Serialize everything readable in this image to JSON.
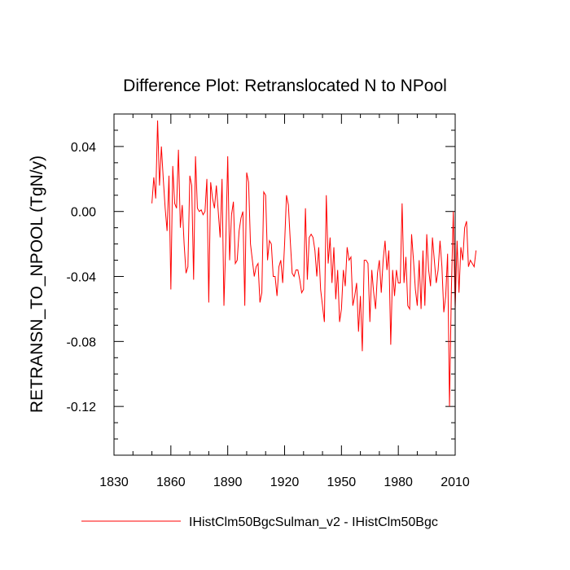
{
  "chart_data": {
    "type": "line",
    "title": "Difference Plot: Retranslocated N to NPool",
    "xlabel": "",
    "ylabel": "RETRANSN_TO_NPOOL  (TgN/y)",
    "xlim": [
      1830,
      2010
    ],
    "ylim": [
      -0.15,
      0.06
    ],
    "x_ticks": [
      1830,
      1860,
      1890,
      1920,
      1950,
      1980,
      2010
    ],
    "x_tick_labels": [
      "1830",
      "1860",
      "1890",
      "1920",
      "1950",
      "1980",
      "2010"
    ],
    "y_ticks": [
      0.04,
      0.0,
      -0.04,
      -0.08,
      -0.12
    ],
    "y_tick_labels": [
      "0.04",
      "0.00",
      "-0.04",
      "-0.08",
      "-0.12"
    ],
    "grid": false,
    "legend_position": "bottom-center",
    "series": [
      {
        "name": "IHistClm50BgcSulman_v2 - IHistClm50Bgc",
        "color": "#ff0000",
        "x_start": 1850,
        "x_step": 1,
        "values": [
          0.005,
          0.021,
          0.008,
          0.056,
          0.016,
          0.04,
          0.02,
          0.002,
          -0.012,
          0.022,
          -0.048,
          0.028,
          0.005,
          0.002,
          0.038,
          -0.01,
          0.004,
          -0.02,
          -0.038,
          -0.034,
          0.022,
          0.016,
          -0.042,
          0.034,
          0.002,
          0.0,
          0.001,
          -0.002,
          0.0,
          0.02,
          -0.056,
          0.018,
          0.008,
          0.002,
          0.016,
          0.0,
          -0.016,
          0.02,
          -0.058,
          -0.018,
          0.034,
          -0.03,
          -0.002,
          0.006,
          -0.032,
          -0.03,
          -0.012,
          -0.004,
          0.0,
          -0.058,
          0.024,
          0.018,
          -0.02,
          -0.03,
          -0.04,
          -0.034,
          -0.032,
          -0.056,
          -0.05,
          0.012,
          0.01,
          -0.03,
          -0.018,
          -0.02,
          -0.04,
          -0.04,
          -0.052,
          -0.034,
          -0.03,
          -0.044,
          -0.02,
          0.01,
          0.004,
          -0.018,
          -0.038,
          -0.04,
          -0.036,
          -0.036,
          -0.042,
          -0.05,
          -0.048,
          0.002,
          -0.042,
          -0.016,
          -0.014,
          -0.016,
          -0.024,
          -0.04,
          -0.022,
          -0.048,
          -0.058,
          -0.068,
          0.01,
          -0.032,
          -0.016,
          -0.044,
          -0.022,
          -0.054,
          -0.036,
          -0.068,
          -0.06,
          -0.036,
          -0.046,
          -0.022,
          -0.03,
          -0.028,
          -0.058,
          -0.052,
          -0.044,
          -0.074,
          -0.052,
          -0.086,
          -0.03,
          -0.03,
          -0.032,
          -0.068,
          -0.036,
          -0.05,
          -0.06,
          -0.038,
          -0.03,
          -0.05,
          -0.03,
          -0.018,
          -0.036,
          -0.024,
          -0.082,
          -0.036,
          -0.052,
          -0.036,
          -0.044,
          -0.044,
          0.005,
          -0.044,
          -0.028,
          -0.058,
          -0.06,
          -0.014,
          -0.03,
          -0.048,
          -0.058,
          -0.03,
          -0.06,
          -0.024,
          -0.058,
          -0.014,
          -0.036,
          -0.046,
          -0.016,
          -0.03,
          -0.044,
          -0.036,
          -0.018,
          -0.034,
          -0.062,
          -0.052,
          -0.026,
          -0.12,
          -0.048,
          0.0,
          -0.06,
          -0.018,
          -0.05,
          -0.022,
          -0.03,
          -0.01,
          -0.006,
          -0.034,
          -0.03,
          -0.032,
          -0.034,
          -0.024
        ]
      }
    ]
  }
}
